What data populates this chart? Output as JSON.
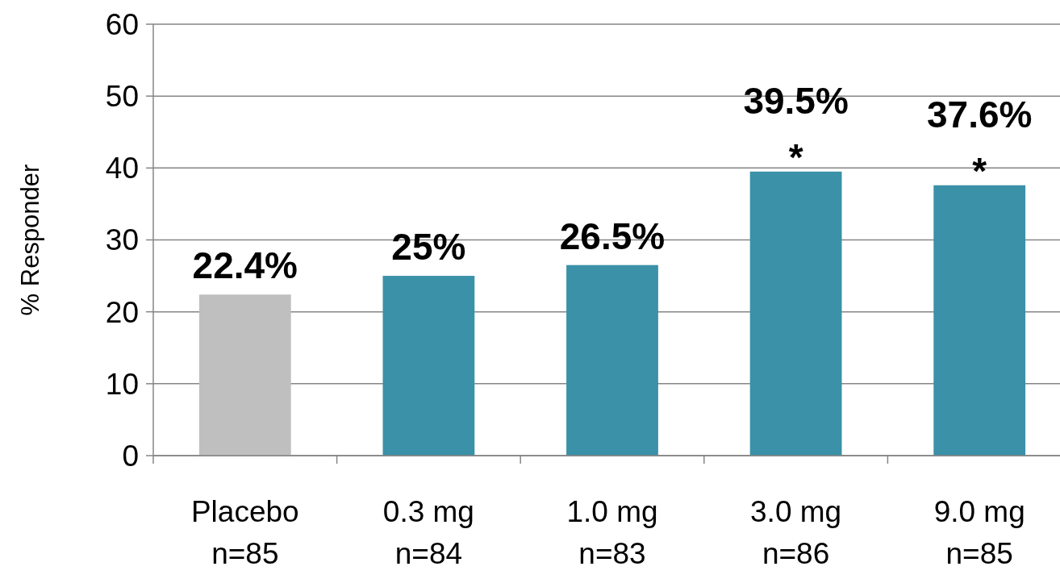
{
  "chart_data": {
    "type": "bar",
    "ylabel": "% Responder",
    "categories": [
      "Placebo\nn=85",
      "0.3 mg\nn=84",
      "1.0 mg\nn=83",
      "3.0 mg\nn=86",
      "9.0 mg\nn=85"
    ],
    "values": [
      22.4,
      25,
      26.5,
      39.5,
      37.6
    ],
    "colors": [
      "#bfbfbf",
      "#3a91a8",
      "#3a91a8",
      "#3a91a8",
      "#3a91a8"
    ],
    "value_labels": [
      "22.4%",
      "25%",
      "26.5%",
      "39.5%",
      "37.6%"
    ],
    "annotations": [
      {
        "text": "*",
        "x": "3.0 mg\nn=86",
        "y": 39.5
      },
      {
        "text": "*",
        "x": "9.0 mg\nn=85",
        "y": 37.6
      }
    ],
    "ylim": [
      0,
      60
    ],
    "yticks": [
      0,
      10,
      20,
      30,
      40,
      50,
      60
    ],
    "grid": "y"
  }
}
